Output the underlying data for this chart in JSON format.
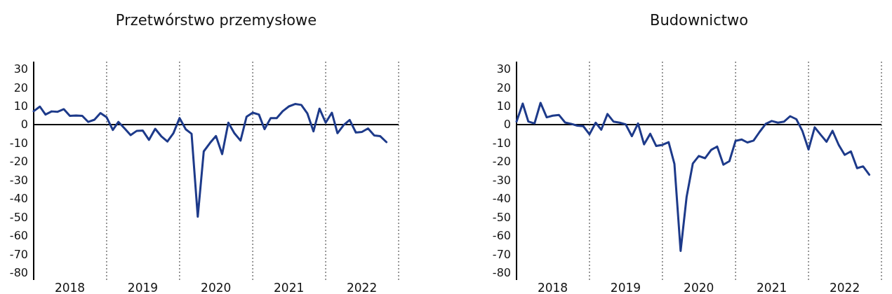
{
  "chart_data": [
    {
      "type": "line",
      "title": "Przetwórstwo przemysłowe",
      "x": [
        "2018-01",
        "2018-02",
        "2018-03",
        "2018-04",
        "2018-05",
        "2018-06",
        "2018-07",
        "2018-08",
        "2018-09",
        "2018-10",
        "2018-11",
        "2018-12",
        "2019-01",
        "2019-02",
        "2019-03",
        "2019-04",
        "2019-05",
        "2019-06",
        "2019-07",
        "2019-08",
        "2019-09",
        "2019-10",
        "2019-11",
        "2019-12",
        "2020-01",
        "2020-02",
        "2020-03",
        "2020-04",
        "2020-05",
        "2020-06",
        "2020-07",
        "2020-08",
        "2020-09",
        "2020-10",
        "2020-11",
        "2020-12",
        "2021-01",
        "2021-02",
        "2021-03",
        "2021-04",
        "2021-05",
        "2021-06",
        "2021-07",
        "2021-08",
        "2021-09",
        "2021-10",
        "2021-11",
        "2021-12",
        "2022-01",
        "2022-02",
        "2022-03",
        "2022-04",
        "2022-05",
        "2022-06",
        "2022-07",
        "2022-08",
        "2022-09",
        "2022-10",
        "2022-11"
      ],
      "series": [
        {
          "color": "#1d3a8a",
          "values": [
            7.2,
            9.7,
            5.4,
            7.1,
            6.9,
            8.3,
            4.7,
            4.9,
            4.7,
            1.4,
            2.6,
            6.2,
            3.9,
            -2.9,
            1.4,
            -2.1,
            -5.7,
            -3.4,
            -3.3,
            -8.3,
            -2.3,
            -6.3,
            -9.2,
            -4.7,
            3.5,
            -2.6,
            -5.0,
            -49.8,
            -14.5,
            -10.0,
            -6.2,
            -16.0,
            1.0,
            -4.7,
            -8.7,
            4.2,
            6.4,
            5.4,
            -2.5,
            3.5,
            3.5,
            7.3,
            9.8,
            11.1,
            10.6,
            6.1,
            -3.7,
            8.6,
            1.0,
            6.4,
            -4.7,
            -0.3,
            2.5,
            -4.3,
            -4.0,
            -2.1,
            -5.9,
            -6.3,
            -9.5
          ]
        }
      ],
      "xlim": [
        "2018-01",
        "2023-01"
      ],
      "xticks": [
        {
          "value": "2018-07",
          "label": "2018"
        },
        {
          "value": "2019-07",
          "label": "2019"
        },
        {
          "value": "2020-07",
          "label": "2020"
        },
        {
          "value": "2021-07",
          "label": "2021"
        },
        {
          "value": "2022-07",
          "label": "2022"
        }
      ],
      "ylim": [
        -84,
        34
      ],
      "yticks": [
        -80,
        -70,
        -60,
        -50,
        -40,
        -30,
        -20,
        -10,
        0,
        10,
        20,
        30
      ],
      "ref_lines": [
        {
          "axis": "y",
          "value": 0,
          "color": "#000000",
          "line_style": "solid"
        },
        {
          "axis": "x",
          "value": "2019-01",
          "color": "#555555",
          "line_style": "dotted"
        },
        {
          "axis": "x",
          "value": "2020-01",
          "color": "#555555",
          "line_style": "dotted"
        },
        {
          "axis": "x",
          "value": "2021-01",
          "color": "#555555",
          "line_style": "dotted"
        },
        {
          "axis": "x",
          "value": "2022-01",
          "color": "#555555",
          "line_style": "dotted"
        },
        {
          "axis": "x",
          "value": "2023-01",
          "color": "#555555",
          "line_style": "dotted"
        }
      ]
    },
    {
      "type": "line",
      "title": "Budownictwo",
      "x": [
        "2018-01",
        "2018-02",
        "2018-03",
        "2018-04",
        "2018-05",
        "2018-06",
        "2018-07",
        "2018-08",
        "2018-09",
        "2018-10",
        "2018-11",
        "2018-12",
        "2019-01",
        "2019-02",
        "2019-03",
        "2019-04",
        "2019-05",
        "2019-06",
        "2019-07",
        "2019-08",
        "2019-09",
        "2019-10",
        "2019-11",
        "2019-12",
        "2020-01",
        "2020-02",
        "2020-03",
        "2020-04",
        "2020-05",
        "2020-06",
        "2020-07",
        "2020-08",
        "2020-09",
        "2020-10",
        "2020-11",
        "2020-12",
        "2021-01",
        "2021-02",
        "2021-03",
        "2021-04",
        "2021-05",
        "2021-06",
        "2021-07",
        "2021-08",
        "2021-09",
        "2021-10",
        "2021-11",
        "2021-12",
        "2022-01",
        "2022-02",
        "2022-03",
        "2022-04",
        "2022-05",
        "2022-06",
        "2022-07",
        "2022-08",
        "2022-09",
        "2022-10",
        "2022-11"
      ],
      "series": [
        {
          "color": "#1d3a8a",
          "values": [
            1.6,
            11.3,
            1.6,
            0.6,
            11.7,
            3.9,
            4.8,
            5.2,
            1.1,
            0.4,
            -0.6,
            -0.9,
            -5.3,
            1.0,
            -2.8,
            5.7,
            1.6,
            1.0,
            0.1,
            -6.3,
            0.6,
            -10.7,
            -5.0,
            -11.6,
            -11.0,
            -9.5,
            -21.3,
            -68.3,
            -39.1,
            -21.1,
            -17.0,
            -18.2,
            -13.7,
            -11.9,
            -21.7,
            -19.8,
            -8.8,
            -8.1,
            -9.7,
            -8.7,
            -4.0,
            0.4,
            1.9,
            1.0,
            1.6,
            4.5,
            2.9,
            -3.4,
            -13.5,
            -1.5,
            -5.3,
            -9.3,
            -3.4,
            -11.0,
            -16.4,
            -14.5,
            -23.6,
            -22.6,
            -27.1
          ]
        }
      ],
      "xlim": [
        "2018-01",
        "2023-01"
      ],
      "xticks": [
        {
          "value": "2018-07",
          "label": "2018"
        },
        {
          "value": "2019-07",
          "label": "2019"
        },
        {
          "value": "2020-07",
          "label": "2020"
        },
        {
          "value": "2021-07",
          "label": "2021"
        },
        {
          "value": "2022-07",
          "label": "2022"
        }
      ],
      "ylim": [
        -84,
        34
      ],
      "yticks": [
        -80,
        -70,
        -60,
        -50,
        -40,
        -30,
        -20,
        -10,
        0,
        10,
        20,
        30
      ],
      "ref_lines": [
        {
          "axis": "y",
          "value": 0,
          "color": "#000000",
          "line_style": "solid"
        },
        {
          "axis": "x",
          "value": "2019-01",
          "color": "#555555",
          "line_style": "dotted"
        },
        {
          "axis": "x",
          "value": "2020-01",
          "color": "#555555",
          "line_style": "dotted"
        },
        {
          "axis": "x",
          "value": "2021-01",
          "color": "#555555",
          "line_style": "dotted"
        },
        {
          "axis": "x",
          "value": "2022-01",
          "color": "#555555",
          "line_style": "dotted"
        },
        {
          "axis": "x",
          "value": "2023-01",
          "color": "#555555",
          "line_style": "dotted"
        }
      ]
    }
  ]
}
